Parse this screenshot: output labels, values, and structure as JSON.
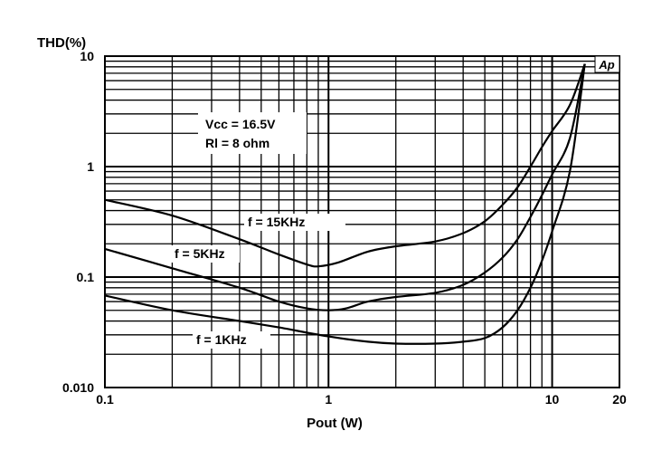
{
  "chart_data": {
    "type": "line",
    "ylabel": "THD(%)",
    "xlabel": "Pout (W)",
    "x_scale": "log",
    "y_scale": "log",
    "xlim": [
      0.1,
      20
    ],
    "ylim": [
      0.01,
      10
    ],
    "x_tick_labels": [
      "0.1",
      "1",
      "10",
      "20"
    ],
    "y_tick_labels": [
      "0.010",
      "0.1",
      "1",
      "10"
    ],
    "grid": true,
    "annotations": [
      "Vcc = 16.5V",
      "Rl = 8 ohm"
    ],
    "logo_text": "Ap",
    "series": [
      {
        "name": "f = 15KHz",
        "x": [
          0.1,
          0.2,
          0.4,
          0.6,
          0.8,
          0.9,
          1.1,
          1.5,
          2,
          3,
          4,
          5,
          6,
          7,
          8,
          9,
          10,
          12,
          14
        ],
        "y": [
          0.5,
          0.36,
          0.22,
          0.16,
          0.13,
          0.125,
          0.135,
          0.17,
          0.19,
          0.21,
          0.25,
          0.32,
          0.45,
          0.65,
          1.0,
          1.5,
          2.1,
          3.6,
          8.5
        ]
      },
      {
        "name": "f = 5KHz",
        "x": [
          0.1,
          0.2,
          0.4,
          0.6,
          0.8,
          1,
          1.2,
          1.5,
          2,
          3,
          4,
          5,
          6,
          7,
          8,
          9,
          10,
          12,
          14
        ],
        "y": [
          0.18,
          0.12,
          0.08,
          0.06,
          0.052,
          0.05,
          0.052,
          0.06,
          0.066,
          0.072,
          0.085,
          0.11,
          0.15,
          0.22,
          0.35,
          0.55,
          0.85,
          1.8,
          8.5
        ]
      },
      {
        "name": "f = 1KHz",
        "x": [
          0.1,
          0.2,
          0.4,
          0.6,
          1,
          1.5,
          2,
          3,
          4,
          5,
          6,
          7,
          8,
          9,
          10,
          12,
          14
        ],
        "y": [
          0.068,
          0.05,
          0.04,
          0.035,
          0.029,
          0.026,
          0.025,
          0.025,
          0.026,
          0.028,
          0.035,
          0.05,
          0.08,
          0.14,
          0.26,
          0.9,
          8.5
        ]
      }
    ]
  }
}
